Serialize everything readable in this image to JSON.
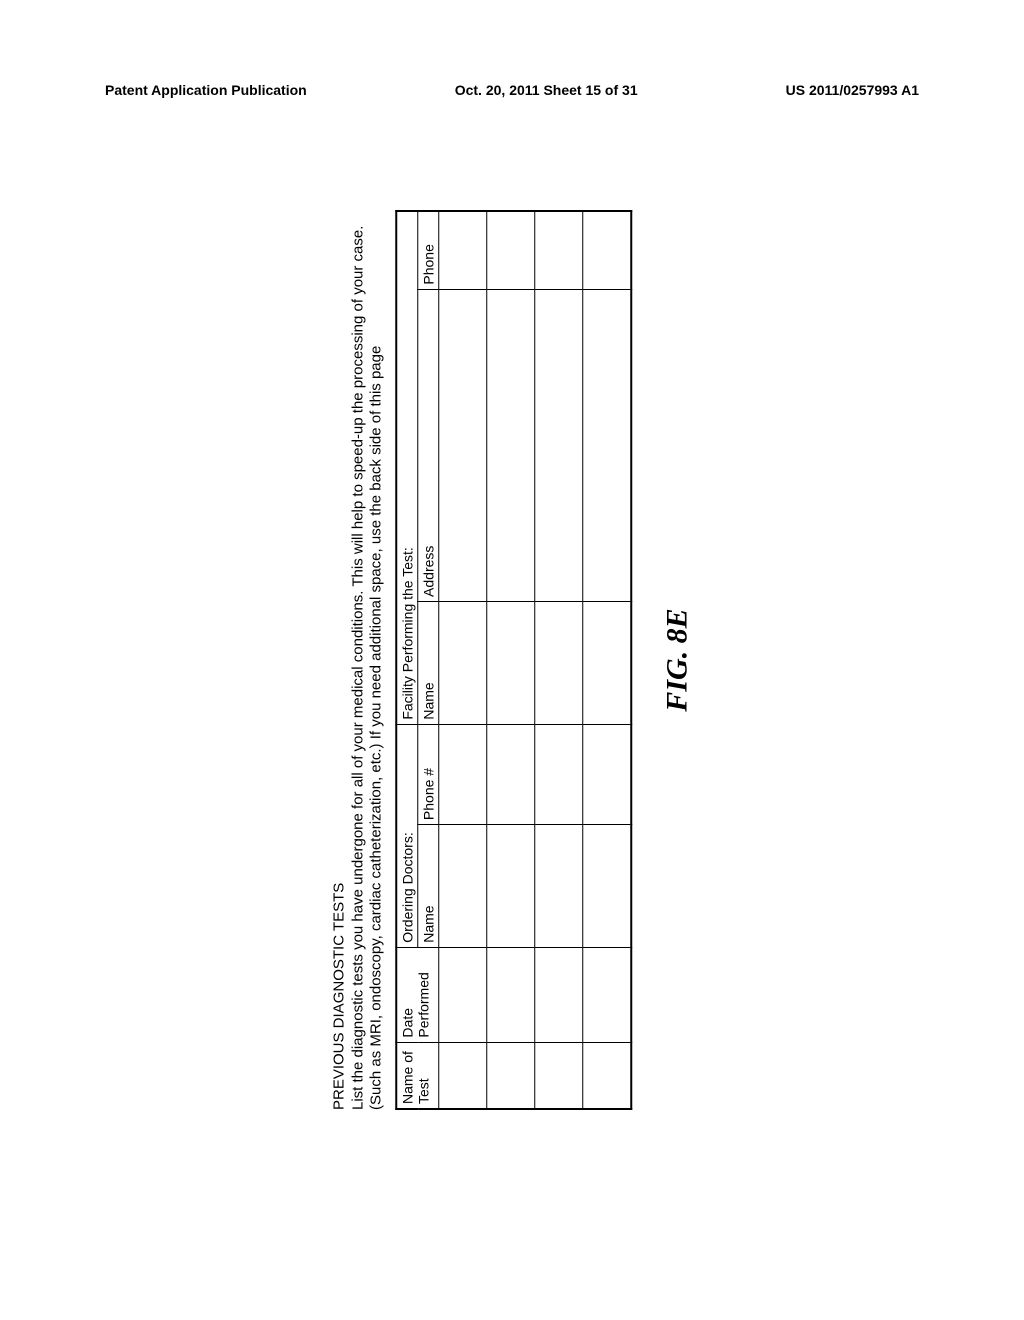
{
  "header": {
    "left": "Patent Application Publication",
    "center": "Oct. 20, 2011  Sheet 15 of 31",
    "right": "US 2011/0257993 A1"
  },
  "form": {
    "title": "PREVIOUS DIAGNOSTIC TESTS",
    "instructions": "List the diagnostic tests you have undergone for all of your medical conditions. This will help to speed-up the processing of your case. (Such as MRI, ondoscopy, cardiac catheterization, etc.) If you need additional space, use the back side of this page",
    "groupHeaders": {
      "test": "Name of Test",
      "date": "Date Performed",
      "ordering": "Ordering Doctors:",
      "facility": "Facility Performing the Test:"
    },
    "colHeaders": {
      "dname": "Name",
      "dphone": "Phone #",
      "fname": "Name",
      "faddr": "Address",
      "fphone": "Phone"
    },
    "rowCount": 4
  },
  "figureLabel": "FIG. 8E"
}
